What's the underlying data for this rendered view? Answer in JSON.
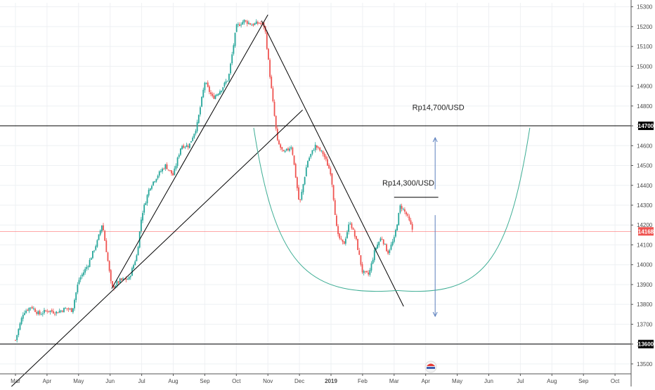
{
  "colors": {
    "up": "#26a69a",
    "down": "#ef5350",
    "grid": "#eef0f3",
    "axis": "#555555",
    "trendline": "#000000",
    "curve": "#3fae95",
    "arrow": "#5b7fbd",
    "current_price_line": "#ff5252",
    "level_badge": "#000000",
    "current_badge": "#ef5350"
  },
  "chart_data": {
    "type": "candlestick",
    "title": "",
    "xlabel": "",
    "ylabel": "",
    "ylim": [
      13450,
      15320
    ],
    "grid": true,
    "x_ticks": [
      {
        "label": "Mar",
        "t": 0
      },
      {
        "label": "Apr",
        "t": 1
      },
      {
        "label": "May",
        "t": 2
      },
      {
        "label": "Jun",
        "t": 3
      },
      {
        "label": "Jul",
        "t": 4
      },
      {
        "label": "Aug",
        "t": 5
      },
      {
        "label": "Sep",
        "t": 6
      },
      {
        "label": "Oct",
        "t": 7
      },
      {
        "label": "Nov",
        "t": 8
      },
      {
        "label": "Dec",
        "t": 9
      },
      {
        "label": "2019",
        "t": 10
      },
      {
        "label": "Feb",
        "t": 11
      },
      {
        "label": "Mar",
        "t": 12
      },
      {
        "label": "Apr",
        "t": 13
      },
      {
        "label": "May",
        "t": 14
      },
      {
        "label": "Jun",
        "t": 15
      },
      {
        "label": "Jul",
        "t": 16
      },
      {
        "label": "Aug",
        "t": 17
      },
      {
        "label": "Sep",
        "t": 18
      },
      {
        "label": "Oct",
        "t": 19
      }
    ],
    "y_ticks": [
      13500,
      13600,
      13700,
      13800,
      13900,
      14000,
      14100,
      14200,
      14300,
      14400,
      14500,
      14600,
      14700,
      14800,
      14900,
      15000,
      15100,
      15200,
      15300
    ],
    "horizontal_levels": [
      {
        "value": 14700,
        "label": "14700"
      },
      {
        "value": 13600,
        "label": "13600"
      }
    ],
    "current_price": {
      "value": 14168,
      "label": "14168"
    },
    "price_path": [
      {
        "t": 0.0,
        "v": 13620
      },
      {
        "t": 0.25,
        "v": 13760
      },
      {
        "t": 0.5,
        "v": 13790
      },
      {
        "t": 0.75,
        "v": 13750
      },
      {
        "t": 1.0,
        "v": 13770
      },
      {
        "t": 1.3,
        "v": 13760
      },
      {
        "t": 1.6,
        "v": 13780
      },
      {
        "t": 1.8,
        "v": 13770
      },
      {
        "t": 2.0,
        "v": 13920
      },
      {
        "t": 2.3,
        "v": 14000
      },
      {
        "t": 2.6,
        "v": 14120
      },
      {
        "t": 2.75,
        "v": 14210
      },
      {
        "t": 2.9,
        "v": 14050
      },
      {
        "t": 3.05,
        "v": 13880
      },
      {
        "t": 3.3,
        "v": 13920
      },
      {
        "t": 3.6,
        "v": 13930
      },
      {
        "t": 3.85,
        "v": 14050
      },
      {
        "t": 4.0,
        "v": 14250
      },
      {
        "t": 4.25,
        "v": 14390
      },
      {
        "t": 4.5,
        "v": 14450
      },
      {
        "t": 4.75,
        "v": 14500
      },
      {
        "t": 5.0,
        "v": 14450
      },
      {
        "t": 5.25,
        "v": 14600
      },
      {
        "t": 5.5,
        "v": 14600
      },
      {
        "t": 5.75,
        "v": 14700
      },
      {
        "t": 6.0,
        "v": 14920
      },
      {
        "t": 6.25,
        "v": 14840
      },
      {
        "t": 6.5,
        "v": 14880
      },
      {
        "t": 6.75,
        "v": 14940
      },
      {
        "t": 7.0,
        "v": 15200
      },
      {
        "t": 7.25,
        "v": 15230
      },
      {
        "t": 7.5,
        "v": 15210
      },
      {
        "t": 7.75,
        "v": 15220
      },
      {
        "t": 7.9,
        "v": 15200
      },
      {
        "t": 8.1,
        "v": 14900
      },
      {
        "t": 8.3,
        "v": 14620
      },
      {
        "t": 8.5,
        "v": 14560
      },
      {
        "t": 8.75,
        "v": 14600
      },
      {
        "t": 9.0,
        "v": 14300
      },
      {
        "t": 9.25,
        "v": 14520
      },
      {
        "t": 9.5,
        "v": 14600
      },
      {
        "t": 9.75,
        "v": 14560
      },
      {
        "t": 10.0,
        "v": 14460
      },
      {
        "t": 10.2,
        "v": 14150
      },
      {
        "t": 10.4,
        "v": 14100
      },
      {
        "t": 10.6,
        "v": 14220
      },
      {
        "t": 10.8,
        "v": 14120
      },
      {
        "t": 11.0,
        "v": 13960
      },
      {
        "t": 11.2,
        "v": 13950
      },
      {
        "t": 11.4,
        "v": 14080
      },
      {
        "t": 11.6,
        "v": 14140
      },
      {
        "t": 11.8,
        "v": 14060
      },
      {
        "t": 12.0,
        "v": 14130
      },
      {
        "t": 12.2,
        "v": 14300
      },
      {
        "t": 12.4,
        "v": 14250
      },
      {
        "t": 12.6,
        "v": 14168
      }
    ],
    "trendlines": [
      {
        "name": "long-support",
        "from": {
          "t": -0.3,
          "v": 13360
        },
        "to": {
          "t": 9.1,
          "v": 14780
        }
      },
      {
        "name": "steep-support",
        "from": {
          "t": 3.05,
          "v": 13880
        },
        "to": {
          "t": 8.0,
          "v": 15260
        }
      },
      {
        "name": "downtrend",
        "from": {
          "t": 7.8,
          "v": 15230
        },
        "to": {
          "t": 12.3,
          "v": 13790
        }
      },
      {
        "name": "resistance-short",
        "from": {
          "t": 12.0,
          "v": 14340
        },
        "to": {
          "t": 13.4,
          "v": 14340
        }
      }
    ],
    "cup_curve": {
      "start": {
        "t": 7.55,
        "v": 14690
      },
      "bottom": {
        "t": 12.1,
        "v": 13870
      },
      "end": {
        "t": 16.3,
        "v": 14690
      }
    },
    "arrows": [
      {
        "name": "up-arrow",
        "x_t": 13.3,
        "from_v": 14380,
        "to_v": 14640
      },
      {
        "name": "down-arrow",
        "x_t": 13.3,
        "from_v": 14250,
        "to_v": 13740
      }
    ],
    "annotations": [
      {
        "text": "Rp14,700/USD",
        "t": 13.4,
        "v": 14780
      },
      {
        "text": "Rp14,300/USD",
        "t": 12.45,
        "v": 14400
      }
    ]
  }
}
